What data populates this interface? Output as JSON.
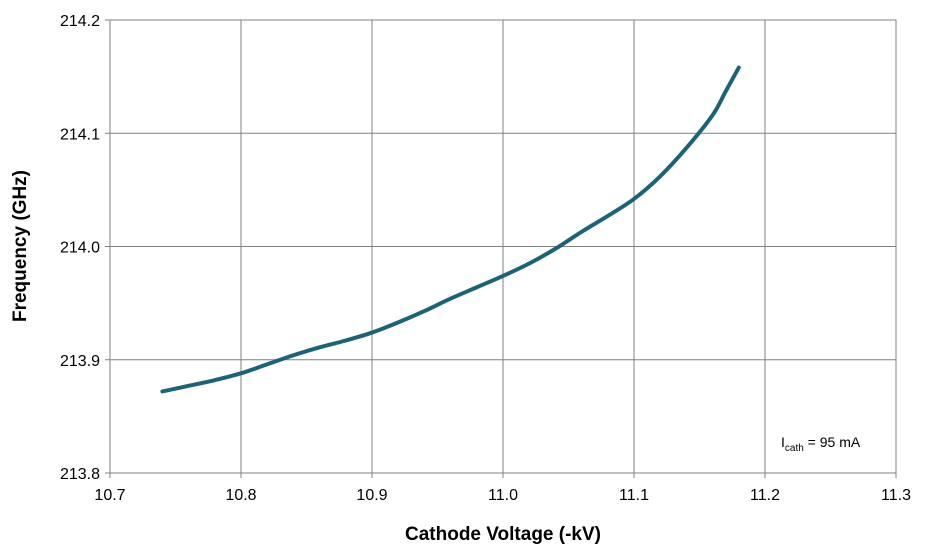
{
  "chart_data": {
    "type": "line",
    "title": "",
    "xlabel": "Cathode Voltage (-kV)",
    "ylabel": "Frequency (GHz)",
    "xlim": [
      10.7,
      11.3
    ],
    "ylim": [
      213.8,
      214.2
    ],
    "x_ticks": [
      "10.7",
      "10.8",
      "10.9",
      "11.0",
      "11.1",
      "11.2",
      "11.3"
    ],
    "y_ticks": [
      "213.8",
      "213.9",
      "214.0",
      "214.1",
      "214.2"
    ],
    "grid": true,
    "line_color": "#1B6478",
    "series": [
      {
        "x": [
          10.74,
          10.76,
          10.78,
          10.8,
          10.82,
          10.84,
          10.86,
          10.88,
          10.9,
          10.92,
          10.94,
          10.96,
          10.98,
          11.0,
          11.02,
          11.04,
          11.06,
          11.08,
          11.1,
          11.12,
          11.14,
          11.16,
          11.17,
          11.18
        ],
        "y": [
          213.872,
          213.877,
          213.882,
          213.888,
          213.896,
          213.904,
          213.911,
          213.917,
          213.924,
          213.933,
          213.943,
          213.954,
          213.964,
          213.974,
          213.985,
          213.998,
          214.013,
          214.027,
          214.042,
          214.062,
          214.087,
          214.116,
          214.137,
          214.158
        ]
      }
    ],
    "annotation": {
      "prefix": "I",
      "subscript": "cath",
      "suffix": " = 95 mA"
    }
  }
}
